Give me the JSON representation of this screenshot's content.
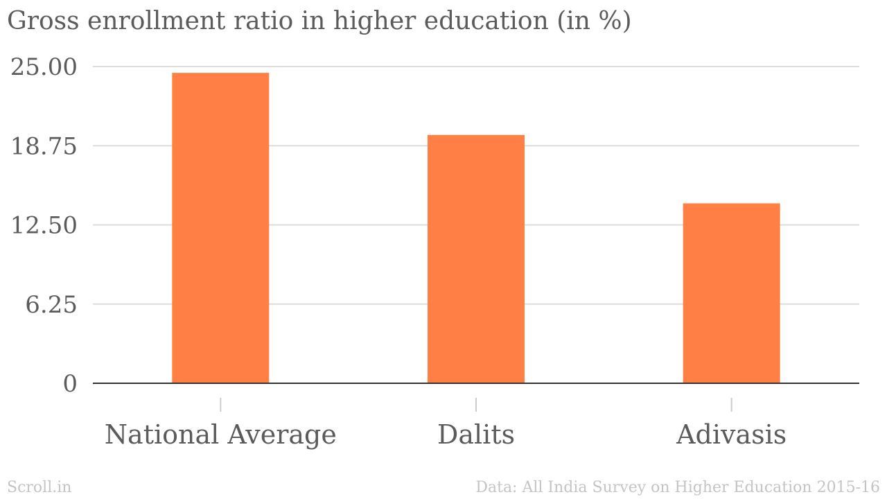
{
  "chart_data": {
    "type": "bar",
    "title": "Gross enrollment ratio in higher education (in %)",
    "categories": [
      "National Average",
      "Dalits",
      "Adivasis"
    ],
    "values": [
      24.5,
      19.6,
      14.2
    ],
    "ylim": [
      0,
      25
    ],
    "yticks": [
      0,
      6.25,
      12.5,
      18.75,
      25
    ],
    "ytick_labels": [
      "0",
      "6.25",
      "12.50",
      "18.75",
      "25.00"
    ],
    "xlabel": "",
    "ylabel": "",
    "grid": true,
    "bar_color": "#ff7f45",
    "grid_color": "#dddddd",
    "axis_color": "#333333"
  },
  "footer": {
    "source_brand": "Scroll.in",
    "data_credit": "Data: All India Survey on Higher Education 2015-16"
  }
}
